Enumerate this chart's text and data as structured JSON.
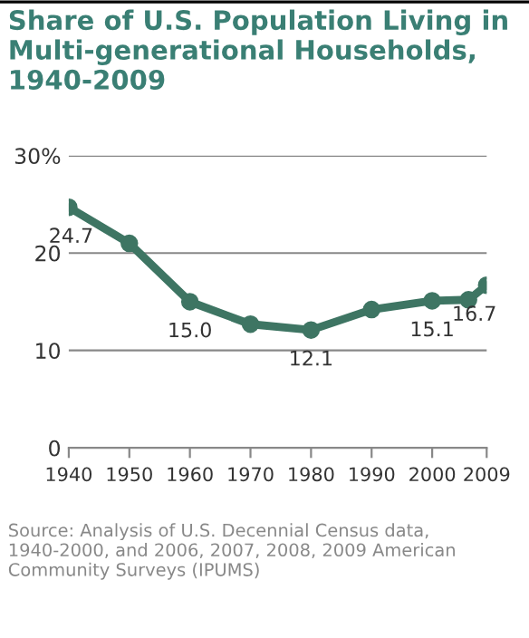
{
  "chart_data": {
    "type": "line",
    "title": "Share of U.S. Population Living in Multi-generational Households, 1940-2009",
    "x": [
      1940,
      1950,
      1960,
      1970,
      1980,
      1990,
      2000,
      2006,
      2009
    ],
    "series": [
      {
        "color": "#3e7563",
        "values": [
          24.7,
          21.0,
          15.0,
          12.7,
          12.1,
          14.2,
          15.1,
          15.2,
          16.7
        ],
        "value_labels": [
          "24.7",
          null,
          "15.0",
          null,
          "12.1",
          null,
          "15.1",
          null,
          "16.7"
        ]
      }
    ],
    "xlim": [
      1940,
      2009
    ],
    "xticks": [
      1940,
      1950,
      1960,
      1970,
      1980,
      1990,
      2000,
      2009
    ],
    "ylim": [
      0,
      30
    ],
    "yticks": [
      0,
      10,
      20,
      {
        "value": 30,
        "label": "30%"
      }
    ],
    "grid": "y",
    "marker": "circle",
    "line_style": "solid",
    "annotations": [
      "Source: Analysis of U.S. Decennial Census data, 1940-2000, and 2006, 2007, 2008, 2009 American Community Surveys (IPUMS)"
    ]
  }
}
